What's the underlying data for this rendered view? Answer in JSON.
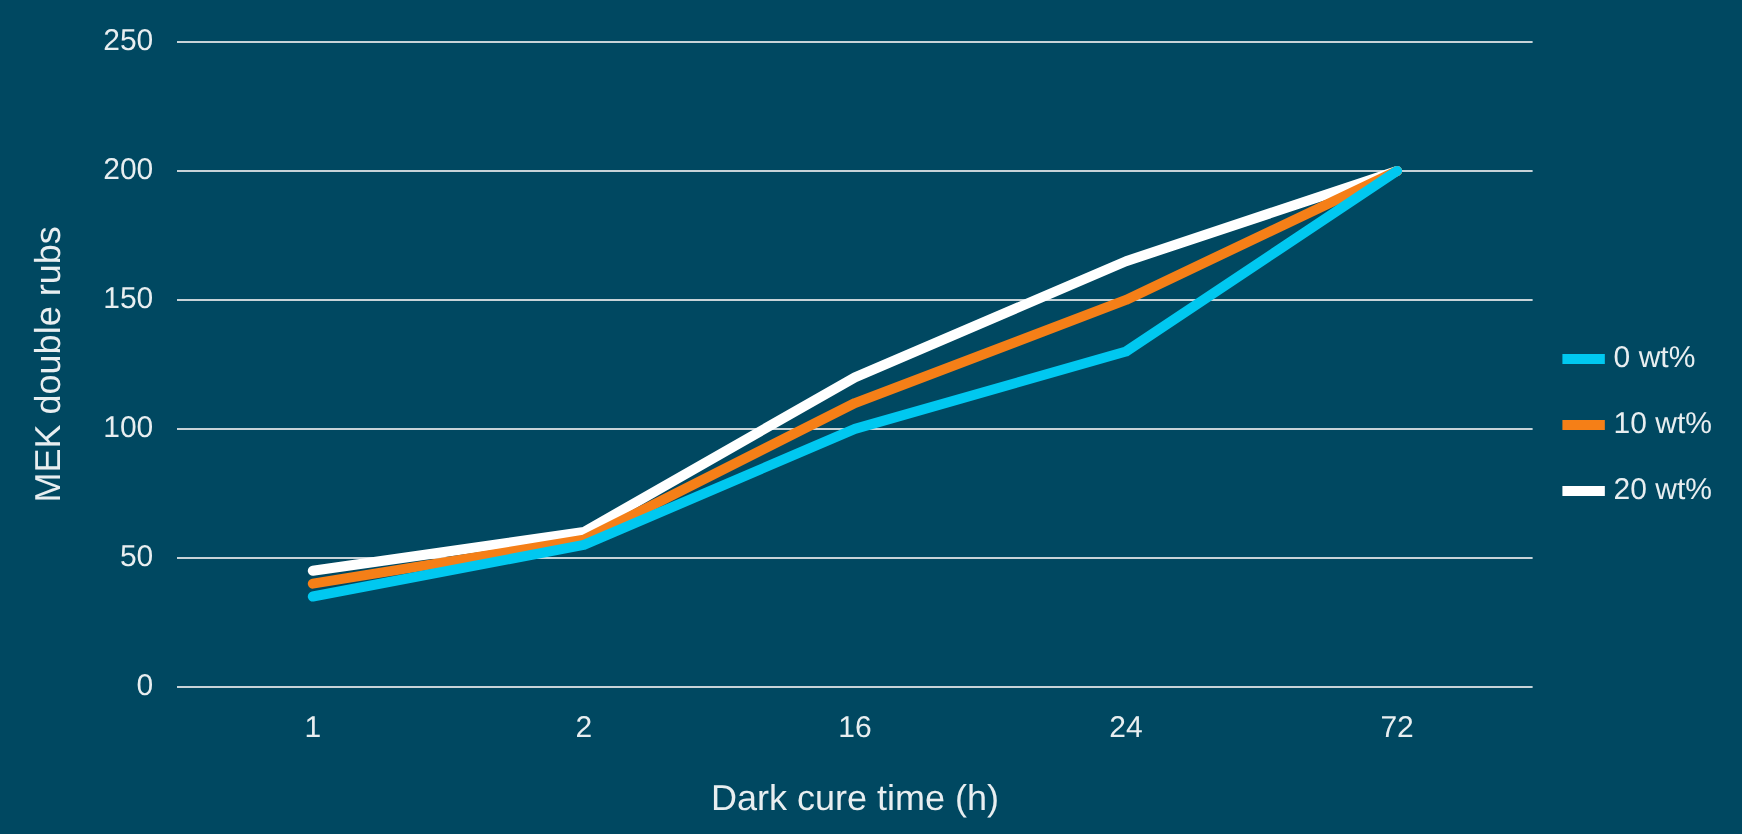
{
  "chart_data": {
    "type": "line",
    "xlabel": "Dark cure time (h)",
    "ylabel": "MEK double rubs",
    "categories": [
      "1",
      "2",
      "16",
      "24",
      "72"
    ],
    "series": [
      {
        "name": "0 wt%",
        "color": "#00c8f0",
        "values": [
          35,
          55,
          100,
          130,
          200
        ]
      },
      {
        "name": "10 wt%",
        "color": "#f57f17",
        "values": [
          40,
          57,
          110,
          150,
          200
        ]
      },
      {
        "name": "20 wt%",
        "color": "#ffffff",
        "values": [
          45,
          60,
          120,
          165,
          200
        ]
      }
    ],
    "ylim": [
      0,
      250
    ],
    "yticks": [
      0,
      50,
      100,
      150,
      200,
      250
    ],
    "grid": "y",
    "legend": "right",
    "marker": "none",
    "line_style": "solid"
  }
}
